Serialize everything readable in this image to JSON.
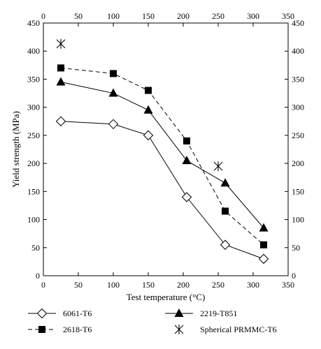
{
  "chart_data": {
    "type": "line",
    "xlabel": "Test temperature (°C)",
    "ylabel": "Yield strength (MPa)",
    "xlim": [
      0,
      350
    ],
    "ylim": [
      0,
      450
    ],
    "x_ticks": [
      0,
      50,
      100,
      150,
      200,
      250,
      300,
      350
    ],
    "y_ticks": [
      0,
      50,
      100,
      150,
      200,
      250,
      300,
      350,
      400,
      450
    ],
    "grid": false,
    "legend_position": "bottom",
    "series": [
      {
        "name": "6061-T6",
        "marker": "open-diamond",
        "line": "solid",
        "color": "#000000",
        "points": [
          [
            25,
            275
          ],
          [
            100,
            270
          ],
          [
            150,
            250
          ],
          [
            205,
            140
          ],
          [
            260,
            55
          ],
          [
            315,
            30
          ]
        ]
      },
      {
        "name": "2618-T6",
        "marker": "filled-square",
        "line": "dashed",
        "color": "#000000",
        "points": [
          [
            25,
            370
          ],
          [
            100,
            360
          ],
          [
            150,
            330
          ],
          [
            205,
            240
          ],
          [
            260,
            115
          ],
          [
            315,
            55
          ]
        ]
      },
      {
        "name": "2219-T851",
        "marker": "filled-triangle",
        "line": "solid",
        "color": "#000000",
        "points": [
          [
            25,
            345
          ],
          [
            100,
            325
          ],
          [
            150,
            295
          ],
          [
            205,
            205
          ],
          [
            260,
            165
          ],
          [
            315,
            85
          ]
        ]
      },
      {
        "name": "Spherical PRMMC-T6",
        "marker": "asterisk",
        "line": "none",
        "color": "#000000",
        "points": [
          [
            25,
            413
          ],
          [
            250,
            195
          ]
        ]
      }
    ]
  }
}
